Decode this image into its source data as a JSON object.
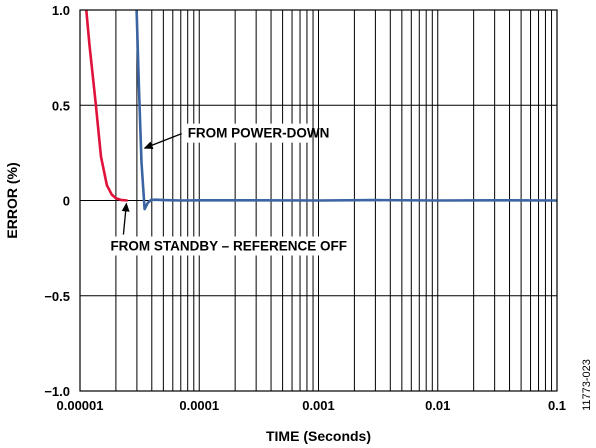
{
  "chart_data": {
    "type": "line",
    "title": "",
    "xlabel": "TIME (Seconds)",
    "ylabel": "ERROR (%)",
    "x_scale": "log",
    "xlim": [
      1e-05,
      0.1
    ],
    "ylim": [
      -1.0,
      1.0
    ],
    "x_ticks": [
      1e-05,
      0.0001,
      0.001,
      0.01,
      0.1
    ],
    "x_tick_labels": [
      "0.00001",
      "0.0001",
      "0.001",
      "0.01",
      "0.1"
    ],
    "y_ticks": [
      1.0,
      0.5,
      0,
      -0.5,
      -1.0
    ],
    "y_tick_labels": [
      "1.0",
      "0.5",
      "0",
      "−0.5",
      "−1.0"
    ],
    "grid": true,
    "series": [
      {
        "name": "FROM STANDBY – REFERENCE OFF",
        "color": "#e0113a",
        "x": [
          1.13e-05,
          1.2e-05,
          1.35e-05,
          1.5e-05,
          1.68e-05,
          1.85e-05,
          2e-05,
          2.2e-05,
          2.5e-05
        ],
        "y": [
          1.0,
          0.82,
          0.52,
          0.23,
          0.08,
          0.03,
          0.012,
          0.003,
          0.0
        ]
      },
      {
        "name": "FROM POWER-DOWN",
        "color": "#3b64a3",
        "x": [
          2.98e-05,
          3.12e-05,
          3.28e-05,
          3.48e-05,
          3.7e-05,
          3.95e-05,
          4.3e-05,
          5e-05,
          7e-05,
          0.0001,
          0.0003,
          0.001,
          0.003,
          0.01,
          0.03,
          0.1
        ],
        "y": [
          1.0,
          0.6,
          0.2,
          -0.045,
          -0.012,
          0.003,
          0.004,
          0.002,
          0.0,
          0.001,
          0.001,
          0.0,
          0.002,
          0.0,
          0.001,
          0.0
        ]
      }
    ],
    "annotations": [
      {
        "text": "FROM POWER-DOWN",
        "x": 8e-05,
        "y": 0.33,
        "arrow_to": [
          3.35e-05,
          0.28
        ]
      },
      {
        "text": "FROM STANDBY – REFERENCE OFF",
        "x": 1.8e-05,
        "y": -0.21,
        "arrow_to": [
          2.45e-05,
          0.0
        ]
      }
    ]
  },
  "figure_id": "11773-023"
}
